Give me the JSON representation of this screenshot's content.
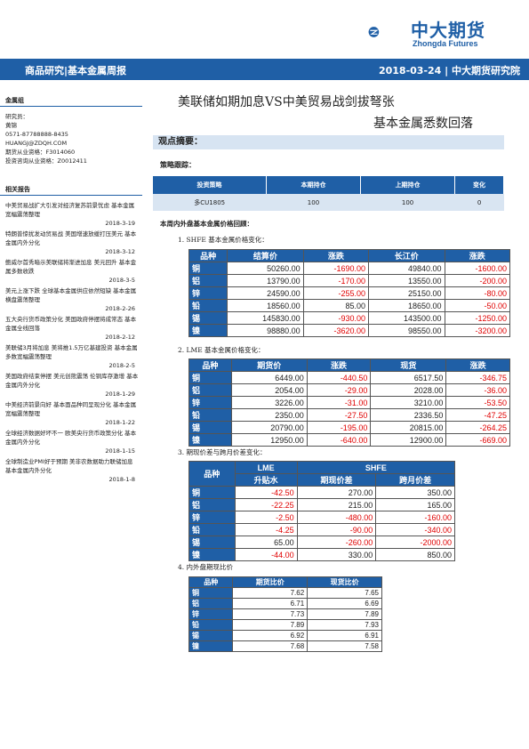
{
  "logo": {
    "cn": "中大期货",
    "en": "Zhongda Futures"
  },
  "banner": {
    "left": "商品研究|基本金属周报",
    "right": "2018-03-24 | 中大期货研究院"
  },
  "sidebar": {
    "group_title": "金属组",
    "lines": [
      "研究员：",
      "黄锦",
      "0571-87788888-8435",
      "HUANGJ@ZDQH.COM",
      "期货从业资格：F3014060",
      "投资咨询从业资格：Z0012411"
    ],
    "related_title": "相关报告",
    "reports": [
      {
        "text": "中美贸易战扩大引发对经济复苏前景忧虑 基本金属宽幅震荡整理",
        "date": "2018-3-19"
      },
      {
        "text": "特朗普惊扰发动贸易战 美国增速放缓打压美元 基本金属内外分化",
        "date": "2018-3-12"
      },
      {
        "text": "鲍威尔首秀暗示美联储将渐进加息 美元回升 基本金属多数收跌",
        "date": "2018-3-5"
      },
      {
        "text": "美元上涨下跌 全球基本金属供应依然短缺 基本金属横盘震荡整理",
        "date": "2018-2-26"
      },
      {
        "text": "五大央行货币政策分化 美国政府停摆将成常态 基本金属全线回落",
        "date": "2018-2-12"
      },
      {
        "text": "美联储3月将加息 美将推1.5万亿基建投资 基本金属多数宽幅震荡整理",
        "date": "2018-2-5"
      },
      {
        "text": "美国政府结束停摆 美元创熊震荡 伦铜库存激增 基本金属内外分化",
        "date": "2018-1-29"
      },
      {
        "text": "中美经济前景向好 基本面品种同呈现分化 基本金属宽幅震荡整理",
        "date": "2018-1-22"
      },
      {
        "text": "全球经济数据好坏不一 欧美央行货币政策分化 基本金属内外分化",
        "date": "2018-1-15"
      },
      {
        "text": "全球制造业PMI好于预期 美非农数据助力联储加息 基本金属内外分化",
        "date": "2018-1-8"
      }
    ]
  },
  "title": {
    "line1": "美联储如期加息VS中美贸易战剑拔弩张",
    "line2": "基本金属悉数回落"
  },
  "summary": {
    "label": "观点摘要：",
    "strategy_label": "策略跟踪："
  },
  "strategy_table": {
    "headers": [
      "投资策略",
      "本期持仓",
      "上期持仓",
      "变化"
    ],
    "rows": [
      [
        "多CU1805",
        "100",
        "100",
        "0"
      ]
    ]
  },
  "weekly_label": "本周内外盘基本金属价格回顾：",
  "sections": [
    "1.  SHFE 基本金属价格变化：",
    "2.  LME  基本金属价格变化：",
    "3.  期现价差与跨月价差变化：",
    "4.  内外盘期现比价"
  ],
  "shfe_table": {
    "headers": [
      "品种",
      "结算价",
      "涨跌",
      "长江价",
      "涨跌"
    ],
    "rows": [
      [
        "铜",
        "50260.00",
        "-1690.00",
        "49840.00",
        "-1600.00"
      ],
      [
        "铝",
        "13790.00",
        "-170.00",
        "13550.00",
        "-200.00"
      ],
      [
        "锌",
        "24590.00",
        "-255.00",
        "25150.00",
        "-80.00"
      ],
      [
        "铅",
        "18560.00",
        "85.00",
        "18650.00",
        "-50.00"
      ],
      [
        "锡",
        "145830.00",
        "-930.00",
        "143500.00",
        "-1250.00"
      ],
      [
        "镍",
        "98880.00",
        "-3620.00",
        "98550.00",
        "-3200.00"
      ]
    ]
  },
  "lme_table": {
    "headers": [
      "品种",
      "期货价",
      "涨跌",
      "现货",
      "涨跌"
    ],
    "rows": [
      [
        "铜",
        "6449.00",
        "-440.50",
        "6517.50",
        "-346.75"
      ],
      [
        "铝",
        "2054.00",
        "-29.00",
        "2028.00",
        "-36.00"
      ],
      [
        "锌",
        "3226.00",
        "-31.00",
        "3210.00",
        "-53.50"
      ],
      [
        "铅",
        "2350.00",
        "-27.50",
        "2336.50",
        "-47.25"
      ],
      [
        "锡",
        "20790.00",
        "-195.00",
        "20815.00",
        "-264.25"
      ],
      [
        "镍",
        "12950.00",
        "-640.00",
        "12900.00",
        "-669.00"
      ]
    ]
  },
  "spread_table": {
    "group_lme": "LME",
    "group_shfe": "SHFE",
    "name_header": "品种",
    "sub_headers": [
      "升贴水",
      "期现价差",
      "跨月价差"
    ],
    "rows": [
      [
        "铜",
        "-42.50",
        "270.00",
        "350.00"
      ],
      [
        "铝",
        "-22.25",
        "215.00",
        "165.00"
      ],
      [
        "锌",
        "-2.50",
        "-480.00",
        "-160.00"
      ],
      [
        "铅",
        "-4.25",
        "-90.00",
        "-340.00"
      ],
      [
        "锡",
        "65.00",
        "-260.00",
        "-2000.00"
      ],
      [
        "镍",
        "-44.00",
        "330.00",
        "850.00"
      ]
    ]
  },
  "ratio_table": {
    "headers": [
      "品种",
      "期货比价",
      "现货比价"
    ],
    "rows": [
      [
        "铜",
        "7.62",
        "7.65"
      ],
      [
        "铝",
        "6.71",
        "6.69"
      ],
      [
        "锌",
        "7.73",
        "7.89"
      ],
      [
        "铅",
        "7.89",
        "7.93"
      ],
      [
        "锡",
        "6.92",
        "6.91"
      ],
      [
        "镍",
        "7.68",
        "7.58"
      ]
    ]
  },
  "colors": {
    "brand_blue": "#1f5fa6",
    "negative_red": "#e00000",
    "light_blue": "#d9e5f2"
  }
}
